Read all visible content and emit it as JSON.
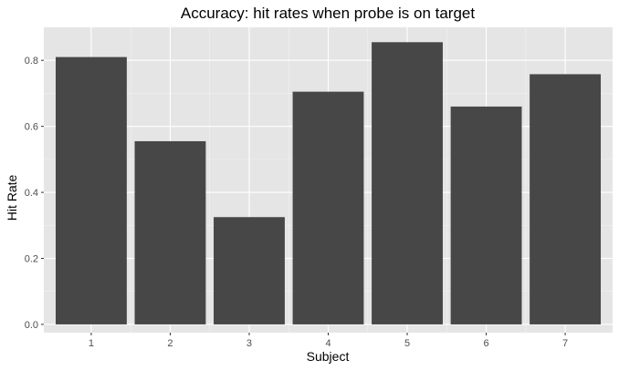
{
  "chart_data": {
    "type": "bar",
    "title": "Accuracy: hit rates when probe is on target",
    "xlabel": "Subject",
    "ylabel": "Hit Rate",
    "categories": [
      "1",
      "2",
      "3",
      "4",
      "5",
      "6",
      "7"
    ],
    "values": [
      0.81,
      0.555,
      0.325,
      0.705,
      0.855,
      0.66,
      0.758
    ],
    "ylim": [
      -0.025,
      0.9
    ],
    "yticks": [
      0.0,
      0.2,
      0.4,
      0.6,
      0.8
    ],
    "ytick_labels": [
      "0.0",
      "0.2",
      "0.4",
      "0.6",
      "0.8"
    ],
    "grid": true,
    "legend": "none",
    "colors": {
      "panel": "#e5e5e5",
      "grid_major": "#ffffff",
      "grid_minor": "#f2f2f2",
      "bar": "#474747",
      "tick": "#333333"
    }
  }
}
